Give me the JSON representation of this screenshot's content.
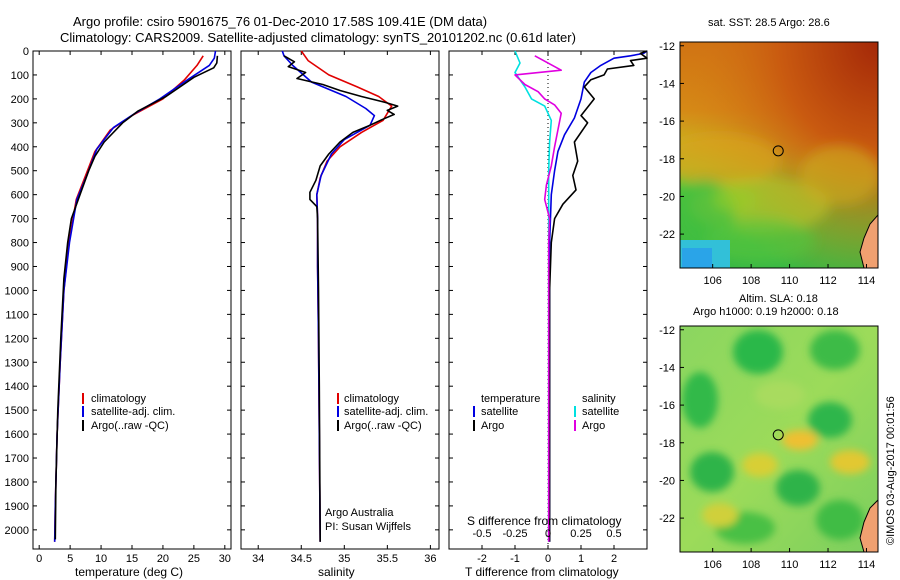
{
  "title_line1": "Argo profile: csiro 5901675_76 01-Dec-2010 17.58S 109.41E (DM data)",
  "title_line2": "Climatology: CARS2009. Satellite-adjusted climatology: synTS_20101202.nc (0.61d later)",
  "side_text": "©IMOS 03-Aug-2017 00:01:56",
  "depth_ticks": [
    0,
    100,
    200,
    300,
    400,
    500,
    600,
    700,
    800,
    900,
    1000,
    1100,
    1200,
    1300,
    1400,
    1500,
    1600,
    1700,
    1800,
    1900,
    2000
  ],
  "colors": {
    "climatology": "#e00000",
    "satellite": "#0000e0",
    "argo": "#000000",
    "salinity_sat": "#00e0e0",
    "salinity_argo": "#e000e0"
  },
  "chart_data": [
    {
      "type": "line",
      "id": "temperature",
      "xlabel": "temperature (deg C)",
      "ylabel": "depth",
      "xlim": [
        -1,
        31
      ],
      "ylim": [
        2080,
        0
      ],
      "xticks": [
        0,
        5,
        10,
        15,
        20,
        25,
        30
      ],
      "legend": [
        "climatology",
        "satellite-adj. clim.",
        "Argo(..raw -QC)"
      ],
      "series": [
        {
          "name": "climatology",
          "color": "#e00000",
          "points": [
            [
              26.5,
              20
            ],
            [
              25.5,
              60
            ],
            [
              23.5,
              120
            ],
            [
              20,
              200
            ],
            [
              15,
              270
            ],
            [
              11.5,
              330
            ],
            [
              9,
              420
            ],
            [
              7.5,
              520
            ],
            [
              6,
              620
            ],
            [
              4.8,
              800
            ],
            [
              4,
              1000
            ],
            [
              3.4,
              1300
            ],
            [
              2.9,
              1600
            ],
            [
              2.6,
              1900
            ],
            [
              2.5,
              2050
            ]
          ]
        },
        {
          "name": "satellite-adj. clim.",
          "color": "#0000e0",
          "points": [
            [
              28.5,
              0
            ],
            [
              28.3,
              30
            ],
            [
              27.5,
              60
            ],
            [
              24,
              120
            ],
            [
              19.5,
              200
            ],
            [
              15.5,
              260
            ],
            [
              12,
              320
            ],
            [
              9.3,
              410
            ],
            [
              7.7,
              520
            ],
            [
              6.1,
              620
            ],
            [
              4.9,
              800
            ],
            [
              4,
              1000
            ],
            [
              3.4,
              1300
            ],
            [
              2.9,
              1600
            ],
            [
              2.6,
              1900
            ],
            [
              2.5,
              2050
            ]
          ]
        },
        {
          "name": "Argo(..raw -QC)",
          "color": "#000000",
          "points": [
            [
              28.8,
              20
            ],
            [
              28.7,
              50
            ],
            [
              28.2,
              70
            ],
            [
              25,
              110
            ],
            [
              20.5,
              190
            ],
            [
              16,
              250
            ],
            [
              13.5,
              300
            ],
            [
              10.5,
              380
            ],
            [
              9,
              440
            ],
            [
              8,
              500
            ],
            [
              6.6,
              600
            ],
            [
              5.2,
              700
            ],
            [
              4.6,
              800
            ],
            [
              4,
              950
            ],
            [
              3.5,
              1200
            ],
            [
              3,
              1500
            ],
            [
              2.7,
              1800
            ],
            [
              2.6,
              2040
            ]
          ]
        }
      ]
    },
    {
      "type": "line",
      "id": "salinity",
      "xlabel": "salinity",
      "ylabel": "depth",
      "xlim": [
        33.8,
        36.1
      ],
      "ylim": [
        2080,
        0
      ],
      "xticks": [
        34,
        34.5,
        35,
        35.5,
        36
      ],
      "legend": [
        "climatology",
        "satellite-adj. clim."
      ],
      "argo_legend": "Argo(..raw -QC)",
      "annotation": [
        "Argo Australia",
        "PI: Susan Wijffels"
      ],
      "series": [
        {
          "name": "climatology",
          "color": "#e00000",
          "points": [
            [
              34.5,
              0
            ],
            [
              34.58,
              40
            ],
            [
              34.82,
              100
            ],
            [
              35.15,
              150
            ],
            [
              35.4,
              190
            ],
            [
              35.55,
              230
            ],
            [
              35.45,
              290
            ],
            [
              35.2,
              340
            ],
            [
              34.95,
              400
            ],
            [
              34.8,
              460
            ],
            [
              34.72,
              530
            ],
            [
              34.68,
              600
            ],
            [
              34.69,
              700
            ],
            [
              34.69,
              900
            ],
            [
              34.7,
              1200
            ],
            [
              34.71,
              1600
            ],
            [
              34.72,
              2050
            ]
          ]
        },
        {
          "name": "satellite-adj. clim.",
          "color": "#0000e0",
          "points": [
            [
              34.28,
              0
            ],
            [
              34.3,
              20
            ],
            [
              34.4,
              60
            ],
            [
              34.62,
              130
            ],
            [
              35.02,
              190
            ],
            [
              35.25,
              240
            ],
            [
              35.35,
              270
            ],
            [
              35.3,
              310
            ],
            [
              35.0,
              370
            ],
            [
              34.85,
              430
            ],
            [
              34.73,
              520
            ],
            [
              34.68,
              600
            ],
            [
              34.69,
              700
            ],
            [
              34.69,
              900
            ],
            [
              34.7,
              1200
            ],
            [
              34.71,
              1600
            ],
            [
              34.72,
              2050
            ]
          ]
        },
        {
          "name": "Argo(..raw -QC)",
          "color": "#000000",
          "points": [
            [
              34.3,
              20
            ],
            [
              34.42,
              45
            ],
            [
              34.35,
              65
            ],
            [
              34.55,
              90
            ],
            [
              34.45,
              115
            ],
            [
              34.75,
              140
            ],
            [
              34.95,
              165
            ],
            [
              35.2,
              190
            ],
            [
              35.48,
              215
            ],
            [
              35.62,
              230
            ],
            [
              35.5,
              248
            ],
            [
              35.58,
              265
            ],
            [
              35.45,
              285
            ],
            [
              35.3,
              310
            ],
            [
              35.1,
              340
            ],
            [
              34.95,
              380
            ],
            [
              34.82,
              430
            ],
            [
              34.72,
              480
            ],
            [
              34.67,
              540
            ],
            [
              34.6,
              590
            ],
            [
              34.6,
              620
            ],
            [
              34.68,
              650
            ],
            [
              34.69,
              700
            ],
            [
              34.7,
              1000
            ],
            [
              34.71,
              1400
            ],
            [
              34.72,
              2050
            ]
          ]
        }
      ]
    },
    {
      "type": "line",
      "id": "differences",
      "xlabel": "T difference from climatology",
      "xlabel_top": "S difference from climatology",
      "xlim": [
        -3,
        3
      ],
      "ylim": [
        2080,
        0
      ],
      "xticks": [
        -2,
        -1,
        0,
        1,
        2
      ],
      "xticks_top": [
        "-0.5",
        "-0.25",
        "0",
        "0.25",
        "0.5"
      ],
      "legend_headers": [
        "temperature",
        "salinity"
      ],
      "legend_temperature": [
        "satellite",
        "Argo"
      ],
      "legend_salinity": [
        "satellite",
        "Argo"
      ],
      "series": [
        {
          "name": "temperature satellite",
          "color": "#0000e0",
          "points": [
            [
              3,
              0
            ],
            [
              2.9,
              10
            ],
            [
              2.5,
              20
            ],
            [
              2,
              30
            ],
            [
              1.6,
              60
            ],
            [
              1.3,
              90
            ],
            [
              1.1,
              130
            ],
            [
              1.0,
              200
            ],
            [
              0.8,
              280
            ],
            [
              0.5,
              350
            ],
            [
              0.3,
              420
            ],
            [
              0.2,
              500
            ],
            [
              0.1,
              600
            ],
            [
              0.05,
              800
            ],
            [
              0.05,
              1200
            ],
            [
              0.05,
              2050
            ]
          ]
        },
        {
          "name": "temperature Argo",
          "color": "#000000",
          "points": [
            [
              3,
              0
            ],
            [
              2.8,
              10
            ],
            [
              3,
              30
            ],
            [
              2.5,
              40
            ],
            [
              2.6,
              60
            ],
            [
              1.8,
              75
            ],
            [
              1.7,
              100
            ],
            [
              1.3,
              120
            ],
            [
              1.1,
              150
            ],
            [
              1.4,
              200
            ],
            [
              1.0,
              270
            ],
            [
              1.2,
              300
            ],
            [
              0.8,
              380
            ],
            [
              0.9,
              460
            ],
            [
              0.75,
              520
            ],
            [
              0.85,
              580
            ],
            [
              0.45,
              640
            ],
            [
              0.2,
              700
            ],
            [
              0.1,
              800
            ],
            [
              0.05,
              1000
            ],
            [
              0.05,
              1500
            ],
            [
              0.05,
              2050
            ]
          ]
        },
        {
          "name": "salinity satellite",
          "color": "#00e0e0",
          "points": [
            [
              -1,
              0
            ],
            [
              -0.85,
              50
            ],
            [
              -1.0,
              90
            ],
            [
              -0.7,
              150
            ],
            [
              -0.5,
              200
            ],
            [
              -0.1,
              230
            ],
            [
              0.1,
              290
            ],
            [
              0.05,
              380
            ],
            [
              0.02,
              500
            ],
            [
              0.02,
              800
            ],
            [
              0.02,
              1500
            ],
            [
              0.02,
              2050
            ]
          ]
        },
        {
          "name": "salinity Argo",
          "color": "#e000e0",
          "points": [
            [
              -0.4,
              20
            ],
            [
              0.4,
              80
            ],
            [
              -1.0,
              100
            ],
            [
              -0.7,
              140
            ],
            [
              -0.3,
              170
            ],
            [
              -0.1,
              200
            ],
            [
              0.2,
              225
            ],
            [
              0.4,
              260
            ],
            [
              0.3,
              330
            ],
            [
              0.2,
              400
            ],
            [
              0.1,
              480
            ],
            [
              -0.05,
              560
            ],
            [
              -0.1,
              620
            ],
            [
              0.05,
              700
            ],
            [
              0.02,
              800
            ],
            [
              0.02,
              1500
            ],
            [
              0.02,
              2050
            ]
          ]
        }
      ]
    },
    {
      "type": "heatmap",
      "id": "sst_map",
      "title": "sat. SST: 28.5  Argo: 28.6",
      "xlim": [
        104.3,
        114.6
      ],
      "ylim": [
        -23.8,
        -11.8
      ],
      "xticks": [
        106,
        108,
        110,
        112,
        114
      ],
      "yticks": [
        -12,
        -14,
        -16,
        -18,
        -20,
        -22
      ],
      "float_position": [
        109.41,
        -17.58
      ]
    },
    {
      "type": "heatmap",
      "id": "sla_map",
      "title_line1": "Altim. SLA: 0.18",
      "title_line2": "Argo h1000: 0.19  h2000: 0.18",
      "xlim": [
        104.3,
        114.6
      ],
      "ylim": [
        -23.8,
        -11.8
      ],
      "xticks": [
        106,
        108,
        110,
        112,
        114
      ],
      "yticks": [
        -12,
        -14,
        -16,
        -18,
        -20,
        -22
      ],
      "float_position": [
        109.41,
        -17.58
      ]
    }
  ]
}
